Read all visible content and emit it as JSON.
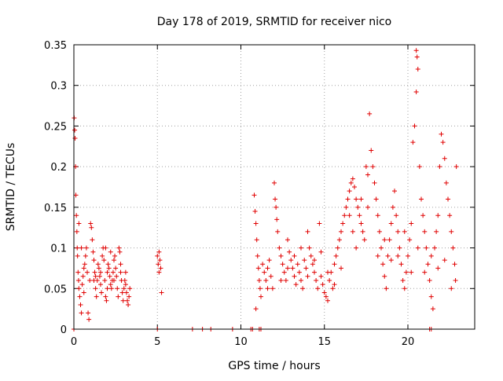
{
  "chart_data": {
    "type": "scatter",
    "title": "Day 178 of 2019, SRMTID for receiver nico",
    "xlabel": "GPS time / hours",
    "ylabel": "SRMTID / TECUs",
    "xlim": [
      0,
      24
    ],
    "ylim": [
      0,
      0.35
    ],
    "xticks": [
      0,
      5,
      10,
      15,
      20
    ],
    "yticks": [
      0,
      0.05,
      0.1,
      0.15,
      0.2,
      0.25,
      0.3,
      0.35
    ],
    "ytick_labels": [
      "0",
      "0.05",
      "0.1",
      "0.15",
      "0.2",
      "0.25",
      "0.3",
      "0.35"
    ],
    "grid": true,
    "marker": "+",
    "color": "#e00000",
    "points": [
      [
        0.02,
        0.26
      ],
      [
        0.05,
        0.245
      ],
      [
        0.07,
        0.235
      ],
      [
        0.1,
        0.2
      ],
      [
        0.12,
        0.165
      ],
      [
        0.15,
        0.14
      ],
      [
        0.18,
        0.12
      ],
      [
        0.2,
        0.1
      ],
      [
        0.22,
        0.09
      ],
      [
        0.25,
        0.07
      ],
      [
        0.28,
        0.06
      ],
      [
        0.3,
        0.05
      ],
      [
        0.35,
        0.04
      ],
      [
        0.4,
        0.03
      ],
      [
        0.45,
        0.02
      ],
      [
        0.5,
        0.055
      ],
      [
        0.55,
        0.065
      ],
      [
        0.6,
        0.045
      ],
      [
        0.65,
        0.08
      ],
      [
        0.7,
        0.09
      ],
      [
        0.75,
        0.1
      ],
      [
        0.8,
        0.07
      ],
      [
        0.85,
        0.02
      ],
      [
        0.9,
        0.012
      ],
      [
        0.95,
        0.06
      ],
      [
        1.0,
        0.13
      ],
      [
        1.05,
        0.125
      ],
      [
        1.1,
        0.11
      ],
      [
        1.15,
        0.095
      ],
      [
        1.2,
        0.085
      ],
      [
        1.25,
        0.07
      ],
      [
        1.3,
        0.05
      ],
      [
        1.35,
        0.04
      ],
      [
        1.4,
        0.06
      ],
      [
        1.45,
        0.08
      ],
      [
        1.5,
        0.075
      ],
      [
        1.55,
        0.065
      ],
      [
        1.6,
        0.055
      ],
      [
        1.65,
        0.045
      ],
      [
        1.7,
        0.09
      ],
      [
        1.75,
        0.1
      ],
      [
        1.8,
        0.085
      ],
      [
        1.85,
        0.06
      ],
      [
        1.9,
        0.04
      ],
      [
        1.95,
        0.035
      ],
      [
        2.0,
        0.07
      ],
      [
        2.05,
        0.08
      ],
      [
        2.1,
        0.075
      ],
      [
        2.15,
        0.065
      ],
      [
        2.2,
        0.055
      ],
      [
        2.25,
        0.05
      ],
      [
        2.3,
        0.06
      ],
      [
        2.35,
        0.07
      ],
      [
        2.4,
        0.085
      ],
      [
        2.45,
        0.09
      ],
      [
        2.5,
        0.075
      ],
      [
        2.55,
        0.065
      ],
      [
        2.6,
        0.05
      ],
      [
        2.65,
        0.04
      ],
      [
        2.7,
        0.1
      ],
      [
        2.75,
        0.095
      ],
      [
        2.8,
        0.08
      ],
      [
        2.85,
        0.06
      ],
      [
        2.9,
        0.045
      ],
      [
        2.95,
        0.035
      ],
      [
        3.0,
        0.05
      ],
      [
        3.05,
        0.06
      ],
      [
        3.1,
        0.055
      ],
      [
        3.15,
        0.045
      ],
      [
        3.2,
        0.035
      ],
      [
        3.25,
        0.03
      ],
      [
        3.3,
        0.04
      ],
      [
        3.35,
        0.05
      ],
      [
        1.2,
        0.06
      ],
      [
        1.6,
        0.07
      ],
      [
        2.0,
        0.05
      ],
      [
        2.4,
        0.06
      ],
      [
        2.8,
        0.07
      ],
      [
        0.6,
        0.075
      ],
      [
        1.3,
        0.065
      ],
      [
        0.3,
        0.13
      ],
      [
        0.45,
        0.1
      ],
      [
        1.9,
        0.1
      ],
      [
        2.2,
        0.095
      ],
      [
        3.1,
        0.07
      ],
      [
        5.0,
        0.09
      ],
      [
        5.05,
        0.08
      ],
      [
        5.1,
        0.07
      ],
      [
        5.15,
        0.085
      ],
      [
        5.2,
        0.075
      ],
      [
        5.25,
        0.045
      ],
      [
        5.1,
        0.095
      ],
      [
        10.8,
        0.165
      ],
      [
        10.85,
        0.145
      ],
      [
        10.9,
        0.13
      ],
      [
        10.95,
        0.11
      ],
      [
        11.0,
        0.09
      ],
      [
        11.05,
        0.075
      ],
      [
        11.1,
        0.06
      ],
      [
        11.15,
        0.05
      ],
      [
        11.2,
        0.04
      ],
      [
        10.9,
        0.025
      ],
      [
        11.3,
        0.08
      ],
      [
        11.4,
        0.07
      ],
      [
        11.5,
        0.06
      ],
      [
        11.6,
        0.075
      ],
      [
        11.7,
        0.085
      ],
      [
        11.8,
        0.065
      ],
      [
        11.9,
        0.05
      ],
      [
        12.0,
        0.18
      ],
      [
        12.05,
        0.16
      ],
      [
        12.1,
        0.15
      ],
      [
        12.15,
        0.135
      ],
      [
        12.2,
        0.12
      ],
      [
        12.3,
        0.1
      ],
      [
        12.4,
        0.09
      ],
      [
        12.5,
        0.08
      ],
      [
        12.6,
        0.07
      ],
      [
        12.7,
        0.06
      ],
      [
        12.8,
        0.11
      ],
      [
        12.9,
        0.095
      ],
      [
        13.0,
        0.085
      ],
      [
        13.1,
        0.075
      ],
      [
        13.2,
        0.065
      ],
      [
        13.3,
        0.055
      ],
      [
        13.4,
        0.08
      ],
      [
        13.5,
        0.07
      ],
      [
        13.6,
        0.06
      ],
      [
        13.7,
        0.05
      ],
      [
        13.8,
        0.085
      ],
      [
        13.9,
        0.075
      ],
      [
        14.0,
        0.12
      ],
      [
        14.1,
        0.1
      ],
      [
        14.2,
        0.09
      ],
      [
        14.3,
        0.08
      ],
      [
        14.4,
        0.07
      ],
      [
        14.5,
        0.06
      ],
      [
        14.6,
        0.05
      ],
      [
        14.7,
        0.13
      ],
      [
        14.8,
        0.065
      ],
      [
        14.9,
        0.055
      ],
      [
        15.0,
        0.045
      ],
      [
        15.1,
        0.04
      ],
      [
        15.2,
        0.035
      ],
      [
        15.3,
        0.06
      ],
      [
        15.4,
        0.07
      ],
      [
        15.5,
        0.05
      ],
      [
        15.6,
        0.08
      ],
      [
        15.7,
        0.09
      ],
      [
        15.8,
        0.1
      ],
      [
        15.9,
        0.11
      ],
      [
        16.0,
        0.12
      ],
      [
        16.1,
        0.13
      ],
      [
        16.2,
        0.14
      ],
      [
        16.3,
        0.15
      ],
      [
        16.4,
        0.16
      ],
      [
        16.5,
        0.17
      ],
      [
        16.6,
        0.18
      ],
      [
        16.7,
        0.185
      ],
      [
        16.8,
        0.175
      ],
      [
        16.9,
        0.16
      ],
      [
        17.0,
        0.15
      ],
      [
        17.1,
        0.14
      ],
      [
        17.2,
        0.13
      ],
      [
        17.3,
        0.12
      ],
      [
        17.4,
        0.11
      ],
      [
        17.5,
        0.2
      ],
      [
        17.6,
        0.19
      ],
      [
        17.7,
        0.265
      ],
      [
        17.8,
        0.22
      ],
      [
        17.9,
        0.2
      ],
      [
        18.0,
        0.18
      ],
      [
        18.1,
        0.16
      ],
      [
        18.2,
        0.14
      ],
      [
        18.3,
        0.12
      ],
      [
        18.4,
        0.1
      ],
      [
        18.5,
        0.08
      ],
      [
        18.6,
        0.065
      ],
      [
        18.7,
        0.05
      ],
      [
        18.8,
        0.09
      ],
      [
        18.9,
        0.11
      ],
      [
        19.0,
        0.13
      ],
      [
        19.1,
        0.15
      ],
      [
        19.2,
        0.17
      ],
      [
        19.3,
        0.14
      ],
      [
        19.4,
        0.12
      ],
      [
        19.5,
        0.1
      ],
      [
        19.6,
        0.08
      ],
      [
        19.7,
        0.06
      ],
      [
        19.8,
        0.05
      ],
      [
        19.9,
        0.07
      ],
      [
        20.0,
        0.09
      ],
      [
        20.1,
        0.11
      ],
      [
        20.2,
        0.13
      ],
      [
        20.3,
        0.23
      ],
      [
        20.4,
        0.25
      ],
      [
        20.5,
        0.343
      ],
      [
        20.55,
        0.335
      ],
      [
        20.6,
        0.32
      ],
      [
        20.5,
        0.292
      ],
      [
        20.7,
        0.2
      ],
      [
        20.8,
        0.16
      ],
      [
        20.9,
        0.14
      ],
      [
        21.0,
        0.12
      ],
      [
        21.1,
        0.1
      ],
      [
        21.2,
        0.08
      ],
      [
        21.3,
        0.06
      ],
      [
        21.4,
        0.04
      ],
      [
        21.5,
        0.025
      ],
      [
        21.6,
        0.1
      ],
      [
        21.7,
        0.12
      ],
      [
        21.8,
        0.14
      ],
      [
        21.9,
        0.2
      ],
      [
        22.0,
        0.24
      ],
      [
        22.1,
        0.23
      ],
      [
        22.2,
        0.21
      ],
      [
        22.3,
        0.18
      ],
      [
        22.4,
        0.16
      ],
      [
        22.5,
        0.14
      ],
      [
        22.6,
        0.12
      ],
      [
        22.7,
        0.1
      ],
      [
        22.8,
        0.08
      ],
      [
        22.85,
        0.06
      ],
      [
        22.9,
        0.2
      ],
      [
        16.5,
        0.14
      ],
      [
        16.7,
        0.12
      ],
      [
        16.9,
        0.1
      ],
      [
        17.2,
        0.16
      ],
      [
        17.6,
        0.15
      ],
      [
        18.2,
        0.09
      ],
      [
        18.6,
        0.11
      ],
      [
        19.0,
        0.085
      ],
      [
        19.4,
        0.09
      ],
      [
        19.8,
        0.12
      ],
      [
        20.2,
        0.07
      ],
      [
        20.6,
        0.1
      ],
      [
        21.0,
        0.07
      ],
      [
        21.4,
        0.09
      ],
      [
        21.8,
        0.075
      ],
      [
        22.2,
        0.085
      ],
      [
        22.6,
        0.05
      ],
      [
        12.4,
        0.06
      ],
      [
        12.8,
        0.075
      ],
      [
        13.2,
        0.09
      ],
      [
        13.6,
        0.1
      ],
      [
        14.0,
        0.065
      ],
      [
        14.4,
        0.085
      ],
      [
        14.8,
        0.095
      ],
      [
        15.2,
        0.07
      ],
      [
        15.6,
        0.055
      ],
      [
        16.0,
        0.075
      ],
      [
        11.6,
        0.05
      ],
      [
        0.0,
        0.0
      ],
      [
        5.0,
        0.0
      ],
      [
        7.1,
        0.0
      ],
      [
        7.7,
        0.0
      ],
      [
        8.2,
        0.0
      ],
      [
        9.5,
        0.0
      ],
      [
        10.6,
        0.0
      ],
      [
        10.7,
        0.0
      ],
      [
        11.1,
        0.0
      ],
      [
        11.2,
        0.0
      ],
      [
        21.3,
        0.0
      ],
      [
        21.4,
        0.0
      ]
    ]
  }
}
